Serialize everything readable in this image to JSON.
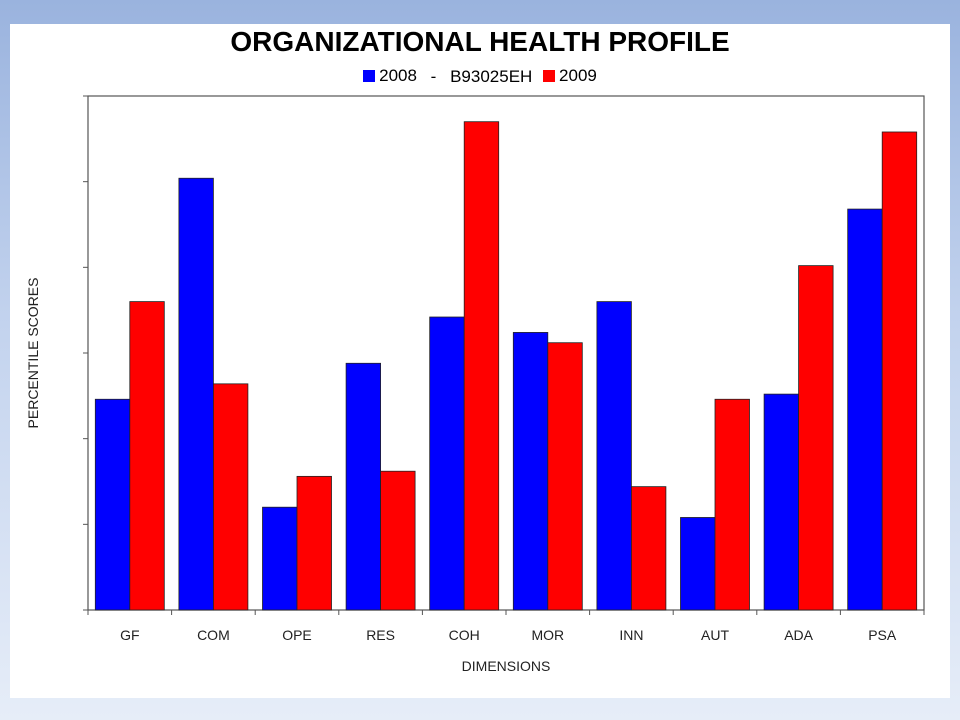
{
  "chart_data": {
    "type": "bar",
    "title": "ORGANIZATIONAL HEALTH PROFILE",
    "legend_separator": "-",
    "legend_note": "B93025EH",
    "xlabel": "DIMENSIONS",
    "ylabel": "PERCENTILE SCORES",
    "categories": [
      "GF",
      "COM",
      "OPE",
      "RES",
      "COH",
      "MOR",
      "INN",
      "AUT",
      "ADA",
      "PSA"
    ],
    "series": [
      {
        "name": "2008",
        "color": "#0000ff",
        "values": [
          41,
          84,
          20,
          48,
          57,
          54,
          60,
          18,
          42,
          78
        ]
      },
      {
        "name": "2009",
        "color": "#ff0000",
        "values": [
          60,
          44,
          26,
          27,
          95,
          52,
          24,
          41,
          67,
          93
        ]
      }
    ],
    "ylim": [
      0,
      100
    ],
    "y_ticks_labeled": false,
    "grid": false,
    "legend_position": "top-center"
  }
}
